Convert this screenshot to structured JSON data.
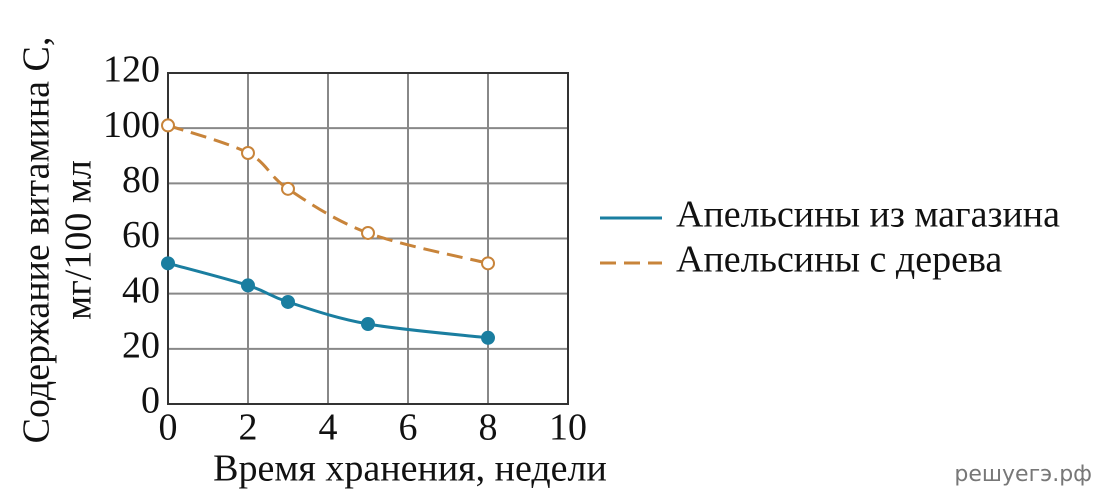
{
  "chart_data": {
    "type": "line",
    "ylabel": [
      "Содержание витамина С,",
      "мг/100 мл"
    ],
    "xlabel": "Время хранения, недели",
    "xlim": [
      0,
      10
    ],
    "xticks": [
      0,
      2,
      4,
      6,
      8,
      10
    ],
    "ylim": [
      0,
      120
    ],
    "yticks": [
      0,
      20,
      40,
      60,
      80,
      100,
      120
    ],
    "grid": true,
    "series": [
      {
        "name": "Апельсины из магазина",
        "color": "#1a7ea0",
        "marker": "filled",
        "dashed": false,
        "x": [
          0,
          2,
          3,
          5,
          8
        ],
        "values": [
          51,
          43,
          37,
          29,
          24
        ]
      },
      {
        "name": "Апельсины с дерева",
        "color": "#c8843a",
        "marker": "open",
        "dashed": true,
        "x": [
          0,
          2,
          3,
          5,
          8
        ],
        "values": [
          101,
          91,
          78,
          62,
          51
        ]
      }
    ],
    "watermark": "решуегэ.рф"
  }
}
